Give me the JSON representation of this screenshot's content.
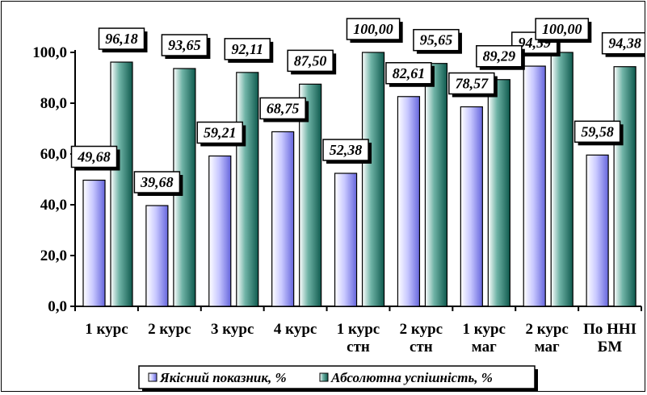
{
  "chart_data": {
    "type": "bar",
    "categories": [
      [
        "1 курс"
      ],
      [
        "2 курс"
      ],
      [
        "3 курс"
      ],
      [
        "4 курс"
      ],
      [
        "1 курс",
        "стн"
      ],
      [
        "2 курс",
        "стн"
      ],
      [
        "1 курс",
        "маг"
      ],
      [
        "2 курс",
        "маг"
      ],
      [
        "По ННІ",
        "БМ"
      ]
    ],
    "series": [
      {
        "name": "Якісний показник, %",
        "values": [
          49.68,
          39.68,
          59.21,
          68.75,
          52.38,
          82.61,
          78.57,
          94.59,
          59.58
        ],
        "labels": [
          "49,68",
          "39,68",
          "59,21",
          "68,75",
          "52,38",
          "82,61",
          "78,57",
          "94,59",
          "59,58"
        ],
        "color": "#9999ff"
      },
      {
        "name": "Абсолютна успішність, %",
        "values": [
          96.18,
          93.65,
          92.11,
          87.5,
          100.0,
          95.65,
          89.29,
          100.0,
          94.38
        ],
        "labels": [
          "96,18",
          "93,65",
          "92,11",
          "87,50",
          "100,00",
          "95,65",
          "89,29",
          "100,00",
          "94,38"
        ],
        "color": "#2e8b7a"
      }
    ],
    "yticks": [
      "0,0",
      "20,0",
      "40,0",
      "60,0",
      "80,0",
      "100,0"
    ],
    "ylim": [
      0,
      100
    ],
    "grid": false,
    "legend": "bottom-center",
    "title": "",
    "xlabel": "",
    "ylabel": ""
  }
}
